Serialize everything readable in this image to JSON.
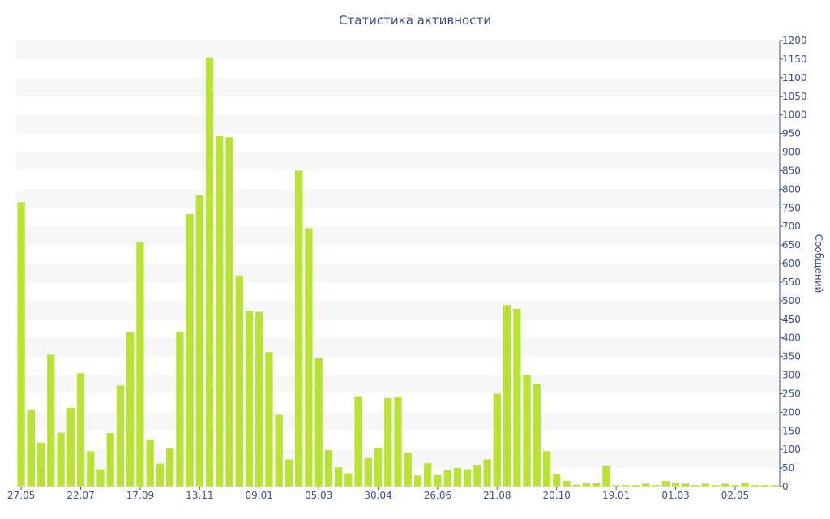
{
  "chart_data": {
    "type": "bar",
    "title": "Статистика активности",
    "ylabel": "Сообщений",
    "xlabel": "",
    "ylim": [
      0,
      1200
    ],
    "y_ticks": [
      0,
      50,
      100,
      150,
      200,
      250,
      300,
      350,
      400,
      450,
      500,
      550,
      600,
      650,
      700,
      750,
      800,
      850,
      900,
      950,
      1000,
      1050,
      1100,
      1150,
      1200
    ],
    "x_tick_labels": [
      {
        "index": 0,
        "label": "27.05"
      },
      {
        "index": 6,
        "label": "22.07"
      },
      {
        "index": 12,
        "label": "17.09"
      },
      {
        "index": 18,
        "label": "13.11"
      },
      {
        "index": 24,
        "label": "09.01"
      },
      {
        "index": 30,
        "label": "05.03"
      },
      {
        "index": 36,
        "label": "30.04"
      },
      {
        "index": 42,
        "label": "26.06"
      },
      {
        "index": 48,
        "label": "21.08"
      },
      {
        "index": 54,
        "label": "20.10"
      },
      {
        "index": 60,
        "label": "19.01"
      },
      {
        "index": 66,
        "label": "01.03"
      },
      {
        "index": 72,
        "label": "02.05"
      }
    ],
    "values": [
      765,
      207,
      118,
      355,
      145,
      212,
      305,
      95,
      47,
      144,
      272,
      415,
      657,
      127,
      62,
      103,
      417,
      733,
      784,
      1155,
      943,
      940,
      568,
      473,
      470,
      362,
      193,
      73,
      850,
      695,
      345,
      98,
      52,
      36,
      243,
      77,
      104,
      238,
      242,
      90,
      30,
      63,
      31,
      44,
      50,
      47,
      57,
      73,
      250,
      488,
      478,
      300,
      277,
      95,
      35,
      15,
      5,
      10,
      10,
      55,
      4,
      4,
      4,
      8,
      4,
      15,
      10,
      8,
      4,
      8,
      4,
      8,
      4,
      10,
      4,
      4,
      4
    ],
    "grid": "alternating horizontal bands",
    "y_axis_position": "right",
    "colors": {
      "bar": "#b9e334",
      "band": "#f7f7f7",
      "text": "#3e4f8c"
    }
  }
}
